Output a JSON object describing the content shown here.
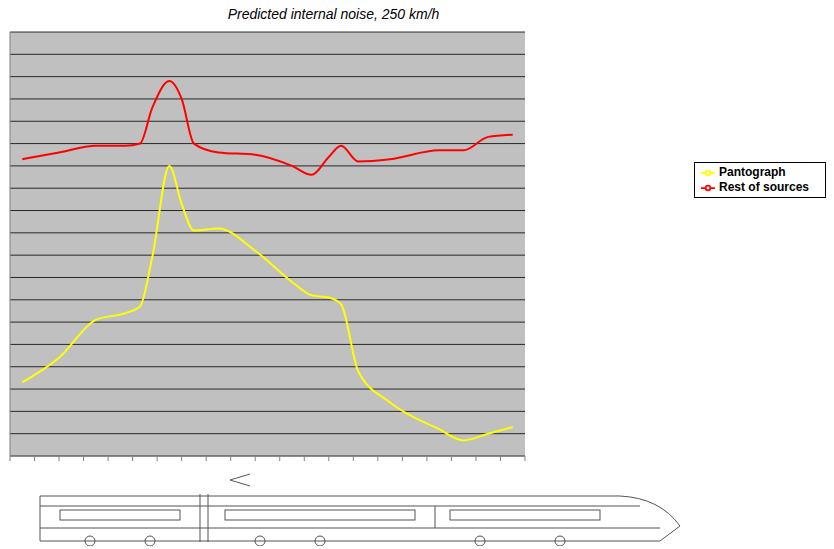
{
  "chart_data": {
    "type": "line",
    "title": "Predicted internal noise, 250 km/h",
    "x": [
      0.5,
      2,
      3.5,
      4.7,
      5.3,
      5.8,
      6.5,
      7,
      7.5,
      8.5,
      10,
      11.5,
      12.3,
      13,
      13.5,
      14.2,
      15.5,
      17.5,
      18.5,
      19.5,
      20.5
    ],
    "series": [
      {
        "name": "Pantograph",
        "color": "#ffff00",
        "values": [
          3.3,
          4.4,
          6.1,
          6.4,
          6.7,
          8.9,
          13,
          11.3,
          10.1,
          10.2,
          9.2,
          7.8,
          7.2,
          7.1,
          6.8,
          3.8,
          2.4,
          1.2,
          0.7,
          1.0,
          1.3
        ]
      },
      {
        "name": "Rest of sources",
        "color": "#ff0000",
        "values": [
          13.3,
          13.6,
          13.9,
          13.9,
          14.0,
          15.6,
          16.8,
          16,
          14,
          13.6,
          13.5,
          13,
          12.6,
          13.4,
          13.9,
          13.2,
          13.3,
          13.7,
          13.7,
          14.3,
          14.4
        ]
      }
    ],
    "xlim": [
      0,
      21
    ],
    "xticks": [
      0,
      1,
      2,
      3,
      4,
      5,
      6,
      7,
      8,
      9,
      10,
      11,
      12,
      13,
      14,
      15,
      16,
      17,
      18,
      19,
      20,
      21
    ],
    "ylim": [
      0,
      19
    ],
    "yticks": [
      0,
      1,
      2,
      3,
      4,
      5,
      6,
      7,
      8,
      9,
      10,
      11,
      12,
      13,
      14,
      15,
      16,
      17,
      18,
      19
    ],
    "grid": true,
    "legend": "right",
    "tick_labels": false
  }
}
